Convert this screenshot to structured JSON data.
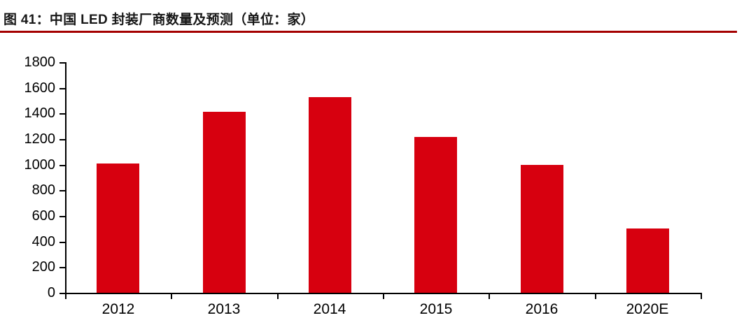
{
  "header": {
    "title": "图 41：中国 LED 封装厂商数量及预测（单位：家）",
    "underline_color": "#a40000"
  },
  "chart_data": {
    "type": "bar",
    "title": "中国 LED 封装厂商数量及预测",
    "unit": "家",
    "categories": [
      "2012",
      "2013",
      "2014",
      "2015",
      "2016",
      "2020E"
    ],
    "values": [
      1010,
      1415,
      1530,
      1215,
      1000,
      500
    ],
    "ylim": [
      0,
      1800
    ],
    "yticks": [
      0,
      200,
      400,
      600,
      800,
      1000,
      1200,
      1400,
      1600,
      1800
    ],
    "xlabel": "",
    "ylabel": "",
    "grid": false,
    "legend": "none",
    "bar_color": "#d7000f",
    "axis_color": "#000000"
  }
}
